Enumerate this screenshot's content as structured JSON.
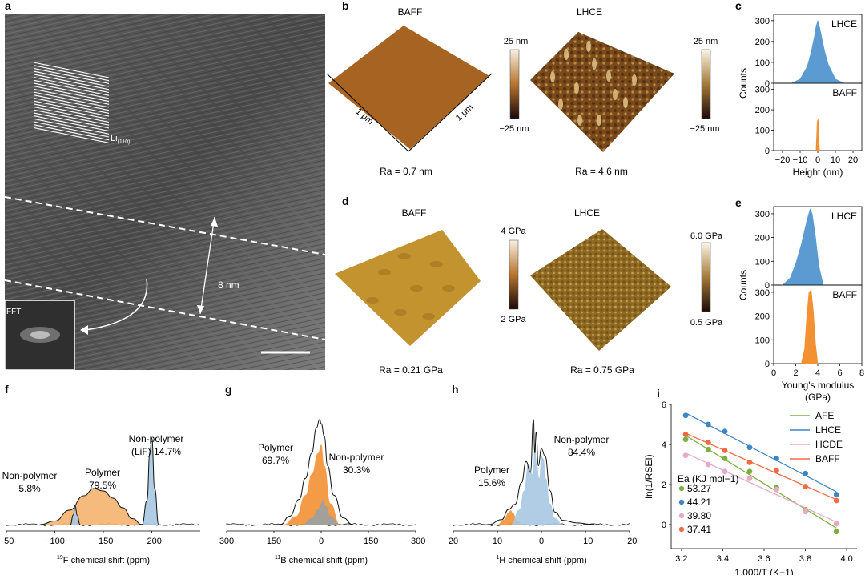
{
  "panels": {
    "a": {
      "label": "a",
      "lattice_label": "Li",
      "lattice_sub": "(110)",
      "thickness": "8 nm",
      "inset_label": "FFT"
    },
    "b": {
      "label": "b",
      "left_title": "BAFF",
      "right_title": "LHCE",
      "axis_left": "1 μm",
      "axis_right": "1 μm",
      "scale_left_top": "25 nm",
      "scale_left_bottom": "−25 nm",
      "scale_right_top": "25 nm",
      "scale_right_bottom": "−25 nm",
      "ra_left": "Ra = 0.7 nm",
      "ra_right": "Ra = 4.6 nm"
    },
    "d": {
      "label": "d",
      "left_title": "BAFF",
      "right_title": "LHCE",
      "scale_left_top": "4 GPa",
      "scale_left_bottom": "2 GPa",
      "scale_right_top": "6.0 GPa",
      "scale_right_bottom": "0.5 GPa",
      "ra_left": "Ra = 0.21 GPa",
      "ra_right": "Ra = 0.75 GPa"
    }
  },
  "colors": {
    "blue": "#5b9bd2",
    "orange": "#f29032",
    "green": "#7ab040",
    "pink": "#e8a9c8",
    "red": "#f26b45",
    "dark_blue": "#3f84c4",
    "grey": "#9aa0a4",
    "light_blue": "#a9c8e3",
    "light_orange": "#f6b36f"
  },
  "chart_data": [
    {
      "id": "c",
      "label": "c",
      "type": "area",
      "xlabel": "Height (nm)",
      "ylabel": "Counts",
      "xlim": [
        -25,
        25
      ],
      "xticks": [
        -20,
        -10,
        0,
        10,
        20
      ],
      "xtick_labels": [
        "−20",
        "−10",
        "0",
        "10",
        "20"
      ],
      "top": {
        "name": "LHCE",
        "ylim": [
          0,
          330
        ],
        "yticks": [
          0,
          100,
          200,
          300
        ]
      },
      "bottom": {
        "name": "BAFF",
        "ylim": [
          0,
          330
        ],
        "yticks": [
          0,
          100,
          200,
          300
        ]
      },
      "series": [
        {
          "name": "LHCE",
          "x": [
            -15,
            -10,
            -6,
            -4,
            -2,
            -1,
            0,
            1,
            2,
            4,
            6,
            10,
            15
          ],
          "values": [
            0,
            20,
            80,
            140,
            220,
            270,
            300,
            270,
            230,
            150,
            90,
            20,
            0
          ]
        },
        {
          "name": "BAFF",
          "x": [
            -1,
            -0.6,
            -0.3,
            0,
            0.3,
            0.6,
            1
          ],
          "values": [
            0,
            80,
            150,
            130,
            155,
            60,
            0
          ]
        }
      ]
    },
    {
      "id": "e",
      "label": "e",
      "type": "area",
      "xlabel": "Young's modulus",
      "xlabel2": "(GPa)",
      "ylabel": "Counts",
      "xlim": [
        0,
        8
      ],
      "xticks": [
        0,
        2,
        4,
        6,
        8
      ],
      "xtick_labels": [
        "0",
        "2",
        "4",
        "6",
        "8"
      ],
      "top": {
        "name": "LHCE",
        "ylim": [
          0,
          330
        ],
        "yticks": [
          0,
          100,
          200,
          300
        ]
      },
      "bottom": {
        "name": "BAFF",
        "ylim": [
          0,
          330
        ],
        "yticks": [
          0,
          100,
          200,
          300
        ]
      },
      "series": [
        {
          "name": "LHCE",
          "x": [
            0.8,
            1.5,
            2.0,
            2.5,
            3.0,
            3.3,
            3.5,
            3.8,
            4.1,
            4.5
          ],
          "values": [
            0,
            30,
            90,
            170,
            270,
            320,
            300,
            200,
            80,
            0
          ]
        },
        {
          "name": "BAFF",
          "x": [
            2.5,
            2.8,
            3.0,
            3.2,
            3.4,
            3.6,
            3.8,
            4.0
          ],
          "values": [
            0,
            60,
            200,
            300,
            310,
            220,
            80,
            0
          ]
        }
      ]
    },
    {
      "id": "f",
      "label": "f",
      "type": "line",
      "xlabel_pre": "19",
      "xlabel": "F chemical shift (ppm)",
      "xlim": [
        -50,
        -250
      ],
      "xticks": [
        -50,
        -100,
        -150,
        -200
      ],
      "xtick_labels": [
        "−50",
        "−100",
        "−150",
        "−200"
      ],
      "annotations": [
        {
          "lines": [
            "Non-polymer",
            "5.8%"
          ]
        },
        {
          "lines": [
            "Polymer",
            "79.5%"
          ]
        },
        {
          "lines": [
            "Non-polymer",
            "(LiF) 14.7%"
          ]
        }
      ],
      "series": [
        {
          "name": "Polymer",
          "x": [
            -85,
            -100,
            -115,
            -130,
            -140,
            -150,
            -160,
            -170,
            -180,
            -190
          ],
          "values": [
            0,
            3,
            12,
            24,
            30,
            28,
            22,
            14,
            5,
            0
          ]
        },
        {
          "name": "Non-polymer 5.8%",
          "x": [
            -116,
            -119,
            -121,
            -123,
            -126
          ],
          "values": [
            0,
            8,
            16,
            8,
            0
          ]
        },
        {
          "name": "Non-polymer (LiF) 14.7%",
          "x": [
            -190,
            -195,
            -198,
            -200,
            -203,
            -207
          ],
          "values": [
            0,
            20,
            60,
            72,
            30,
            0
          ]
        }
      ]
    },
    {
      "id": "g",
      "label": "g",
      "type": "line",
      "xlabel_pre": "11",
      "xlabel": "B chemical shift (ppm)",
      "xlim": [
        300,
        -300
      ],
      "xticks": [
        300,
        150,
        0,
        -150,
        -300
      ],
      "xtick_labels": [
        "300",
        "150",
        "0",
        "−150",
        "−300"
      ],
      "annotations": [
        {
          "lines": [
            "Polymer",
            "69.7%"
          ]
        },
        {
          "lines": [
            "Non-polymer",
            "30.3%"
          ]
        }
      ],
      "series": [
        {
          "name": "Polymer",
          "x": [
            120,
            80,
            50,
            30,
            10,
            0,
            -10,
            -30,
            -60
          ],
          "values": [
            0,
            10,
            35,
            60,
            85,
            95,
            70,
            25,
            0
          ]
        },
        {
          "name": "Non-polymer",
          "x": [
            60,
            30,
            10,
            0,
            -5,
            -15,
            -30,
            -60
          ],
          "values": [
            0,
            8,
            18,
            25,
            30,
            22,
            10,
            0
          ]
        },
        {
          "name": "Total",
          "x": [
            130,
            100,
            70,
            50,
            30,
            15,
            5,
            0,
            -10,
            -20,
            -40,
            -70,
            -100
          ],
          "values": [
            0,
            10,
            30,
            55,
            85,
            115,
            125,
            120,
            105,
            70,
            35,
            8,
            0
          ]
        }
      ]
    },
    {
      "id": "h",
      "label": "h",
      "type": "line",
      "xlabel_pre": "1",
      "xlabel": "H chemical shift (ppm)",
      "xlim": [
        20,
        -20
      ],
      "xticks": [
        20,
        10,
        0,
        -10,
        -20
      ],
      "xtick_labels": [
        "20",
        "10",
        "0",
        "−10",
        "−20"
      ],
      "annotations": [
        {
          "lines": [
            "Polymer",
            "15.6%"
          ]
        },
        {
          "lines": [
            "Non-polymer",
            "84.4%"
          ]
        }
      ],
      "series": [
        {
          "name": "Polymer",
          "x": [
            10,
            8.5,
            7.5,
            7,
            6.5,
            5.5,
            4
          ],
          "values": [
            0,
            6,
            14,
            17,
            14,
            5,
            0
          ]
        },
        {
          "name": "Non-polymer",
          "x": [
            7,
            5,
            4,
            3,
            2,
            1.5,
            1,
            0.5,
            0,
            -0.5,
            -1,
            -2,
            -3,
            -5
          ],
          "values": [
            0,
            18,
            40,
            72,
            60,
            95,
            70,
            55,
            82,
            78,
            55,
            25,
            8,
            0
          ]
        },
        {
          "name": "Total",
          "x": [
            12,
            9,
            7.5,
            6,
            4.5,
            3.5,
            2.5,
            1.8,
            1.5,
            1.2,
            0.7,
            0,
            -0.8,
            -2,
            -3,
            -5,
            -8,
            -12
          ],
          "values": [
            0,
            6,
            18,
            24,
            50,
            75,
            62,
            125,
            85,
            110,
            70,
            90,
            82,
            40,
            15,
            5,
            2,
            0
          ]
        }
      ]
    },
    {
      "id": "i",
      "label": "i",
      "type": "scatter",
      "xlabel": "1,000/T (K−1)",
      "ylabel": "ln(1/RSEI)",
      "xlim": [
        3.15,
        4.05
      ],
      "ylim": [
        -1.2,
        6
      ],
      "xticks": [
        3.2,
        3.4,
        3.6,
        3.8,
        4.0
      ],
      "xtick_labels": [
        "3.2",
        "3.4",
        "3.6",
        "3.8",
        "4.0"
      ],
      "yticks": [
        0,
        2,
        4,
        6
      ],
      "ytick_labels": [
        "0",
        "2",
        "4",
        "6"
      ],
      "legend_position": "top-right",
      "ea_title": "Ea (KJ mol−1)",
      "series": [
        {
          "name": "AFE",
          "ea": "53.27",
          "x": [
            3.22,
            3.33,
            3.41,
            3.53,
            3.66,
            3.8,
            3.95
          ],
          "values": [
            4.25,
            3.75,
            3.3,
            2.65,
            1.85,
            0.75,
            -0.35
          ]
        },
        {
          "name": "LHCE",
          "ea": "44.21",
          "x": [
            3.22,
            3.33,
            3.41,
            3.53,
            3.66,
            3.8,
            3.95
          ],
          "values": [
            5.45,
            5.0,
            4.65,
            3.85,
            3.3,
            2.55,
            1.5
          ]
        },
        {
          "name": "HCDE",
          "ea": "39.80",
          "x": [
            3.22,
            3.33,
            3.41,
            3.53,
            3.66,
            3.8,
            3.95
          ],
          "values": [
            3.45,
            3.0,
            2.65,
            2.3,
            1.75,
            0.65,
            0.05
          ]
        },
        {
          "name": "BAFF",
          "ea": "37.41",
          "x": [
            3.22,
            3.33,
            3.41,
            3.53,
            3.66,
            3.8,
            3.95
          ],
          "values": [
            4.5,
            4.1,
            3.7,
            3.1,
            2.7,
            1.9,
            1.2
          ]
        }
      ]
    }
  ]
}
